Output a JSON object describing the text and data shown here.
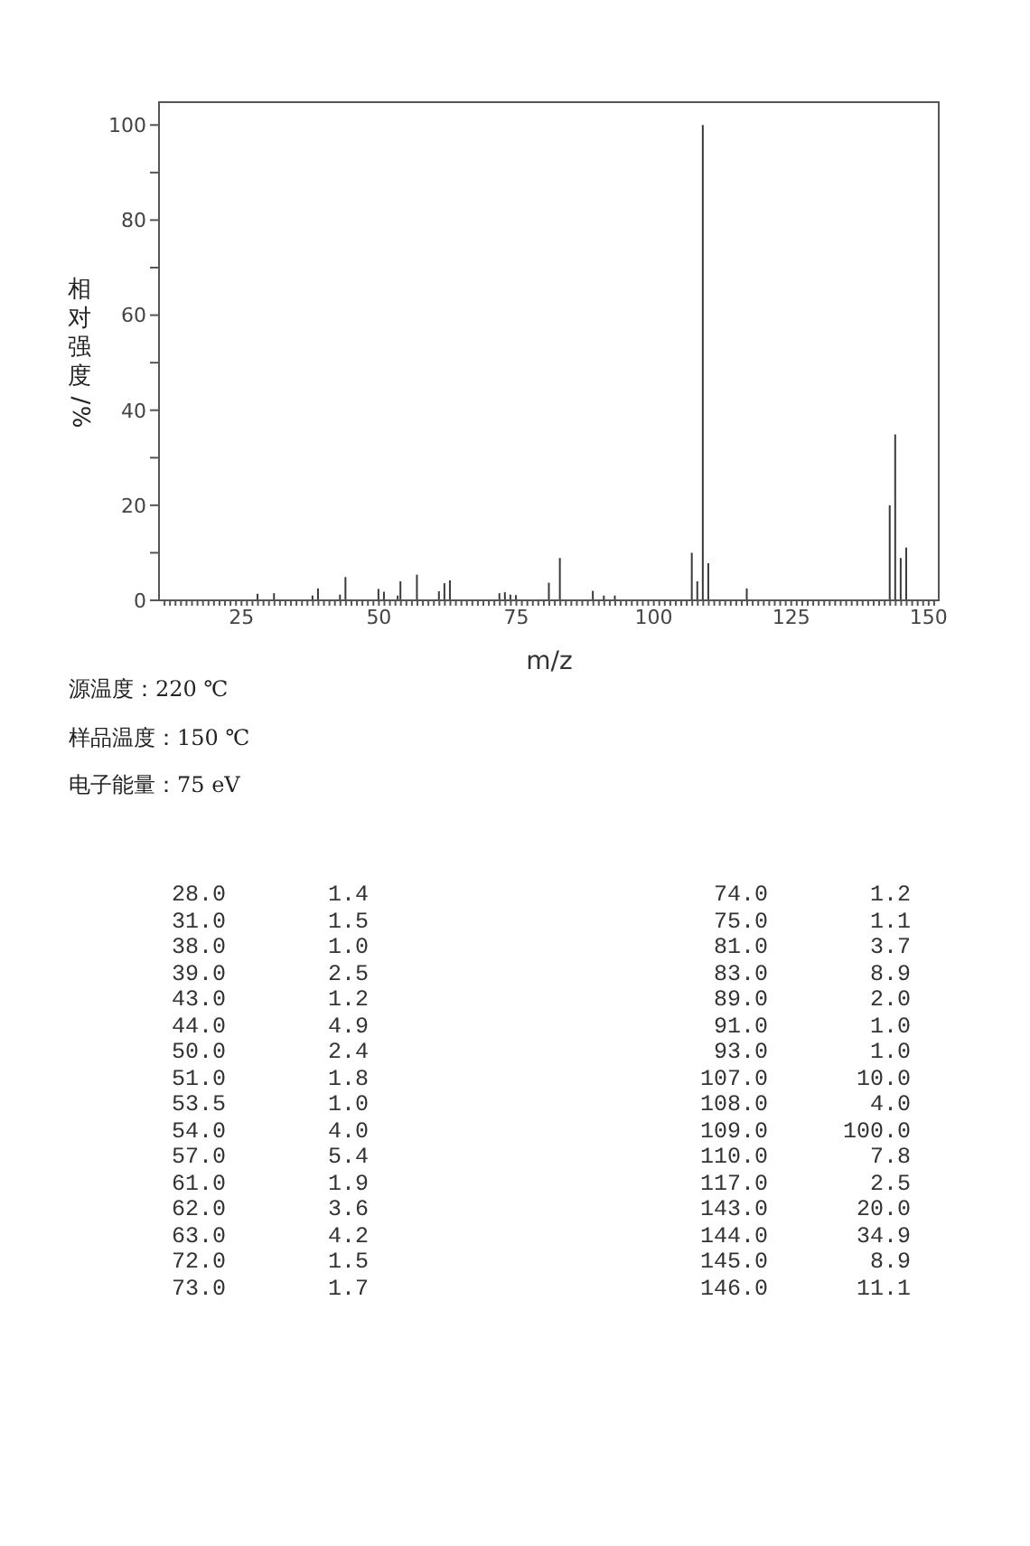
{
  "chart_data": [
    {
      "type": "bar",
      "xlabel": "m/z",
      "ylabel": "相对强度/%",
      "x": [
        28,
        31,
        38,
        39,
        43,
        44,
        50,
        51,
        53.5,
        54,
        57,
        61,
        62,
        63,
        72,
        73,
        74,
        75,
        81,
        83,
        89,
        91,
        93,
        107,
        108,
        109,
        110,
        117,
        143,
        144,
        145,
        146
      ],
      "values": [
        1.4,
        1.5,
        1.0,
        2.5,
        1.2,
        4.9,
        2.4,
        1.8,
        1.0,
        4.0,
        5.4,
        1.9,
        3.6,
        4.2,
        1.5,
        1.7,
        1.2,
        1.1,
        3.7,
        8.9,
        2.0,
        1.0,
        1.0,
        10.0,
        4.0,
        100.0,
        7.8,
        2.5,
        20.0,
        34.9,
        8.9,
        11.1
      ],
      "color": "#3a3a3a",
      "xlim": [
        10,
        152
      ],
      "xticks": [
        {
          "value": 11,
          "label": null
        },
        {
          "value": 12,
          "label": null
        },
        {
          "value": 13,
          "label": null
        },
        {
          "value": 14,
          "label": null
        },
        {
          "value": 15,
          "label": null
        },
        {
          "value": 16,
          "label": null
        },
        {
          "value": 17,
          "label": null
        },
        {
          "value": 18,
          "label": null
        },
        {
          "value": 19,
          "label": null
        },
        {
          "value": 20,
          "label": null
        },
        {
          "value": 21,
          "label": null
        },
        {
          "value": 22,
          "label": null
        },
        {
          "value": 23,
          "label": null
        },
        {
          "value": 24,
          "label": null
        },
        25,
        {
          "value": 26,
          "label": null
        },
        {
          "value": 27,
          "label": null
        },
        {
          "value": 28,
          "label": null
        },
        {
          "value": 29,
          "label": null
        },
        {
          "value": 30,
          "label": null
        },
        {
          "value": 31,
          "label": null
        },
        {
          "value": 32,
          "label": null
        },
        {
          "value": 33,
          "label": null
        },
        {
          "value": 34,
          "label": null
        },
        {
          "value": 35,
          "label": null
        },
        {
          "value": 36,
          "label": null
        },
        {
          "value": 37,
          "label": null
        },
        {
          "value": 38,
          "label": null
        },
        {
          "value": 39,
          "label": null
        },
        {
          "value": 40,
          "label": null
        },
        {
          "value": 41,
          "label": null
        },
        {
          "value": 42,
          "label": null
        },
        {
          "value": 43,
          "label": null
        },
        {
          "value": 44,
          "label": null
        },
        {
          "value": 45,
          "label": null
        },
        {
          "value": 46,
          "label": null
        },
        {
          "value": 47,
          "label": null
        },
        {
          "value": 48,
          "label": null
        },
        {
          "value": 49,
          "label": null
        },
        50,
        {
          "value": 51,
          "label": null
        },
        {
          "value": 52,
          "label": null
        },
        {
          "value": 53,
          "label": null
        },
        {
          "value": 54,
          "label": null
        },
        {
          "value": 55,
          "label": null
        },
        {
          "value": 56,
          "label": null
        },
        {
          "value": 57,
          "label": null
        },
        {
          "value": 58,
          "label": null
        },
        {
          "value": 59,
          "label": null
        },
        {
          "value": 60,
          "label": null
        },
        {
          "value": 61,
          "label": null
        },
        {
          "value": 62,
          "label": null
        },
        {
          "value": 63,
          "label": null
        },
        {
          "value": 64,
          "label": null
        },
        {
          "value": 65,
          "label": null
        },
        {
          "value": 66,
          "label": null
        },
        {
          "value": 67,
          "label": null
        },
        {
          "value": 68,
          "label": null
        },
        {
          "value": 69,
          "label": null
        },
        {
          "value": 70,
          "label": null
        },
        {
          "value": 71,
          "label": null
        },
        {
          "value": 72,
          "label": null
        },
        {
          "value": 73,
          "label": null
        },
        {
          "value": 74,
          "label": null
        },
        75,
        {
          "value": 76,
          "label": null
        },
        {
          "value": 77,
          "label": null
        },
        {
          "value": 78,
          "label": null
        },
        {
          "value": 79,
          "label": null
        },
        {
          "value": 80,
          "label": null
        },
        {
          "value": 81,
          "label": null
        },
        {
          "value": 82,
          "label": null
        },
        {
          "value": 83,
          "label": null
        },
        {
          "value": 84,
          "label": null
        },
        {
          "value": 85,
          "label": null
        },
        {
          "value": 86,
          "label": null
        },
        {
          "value": 87,
          "label": null
        },
        {
          "value": 88,
          "label": null
        },
        {
          "value": 89,
          "label": null
        },
        {
          "value": 90,
          "label": null
        },
        {
          "value": 91,
          "label": null
        },
        {
          "value": 92,
          "label": null
        },
        {
          "value": 93,
          "label": null
        },
        {
          "value": 94,
          "label": null
        },
        {
          "value": 95,
          "label": null
        },
        {
          "value": 96,
          "label": null
        },
        {
          "value": 97,
          "label": null
        },
        {
          "value": 98,
          "label": null
        },
        {
          "value": 99,
          "label": null
        },
        100,
        {
          "value": 101,
          "label": null
        },
        {
          "value": 102,
          "label": null
        },
        {
          "value": 103,
          "label": null
        },
        {
          "value": 104,
          "label": null
        },
        {
          "value": 105,
          "label": null
        },
        {
          "value": 106,
          "label": null
        },
        {
          "value": 107,
          "label": null
        },
        {
          "value": 108,
          "label": null
        },
        {
          "value": 109,
          "label": null
        },
        {
          "value": 110,
          "label": null
        },
        {
          "value": 111,
          "label": null
        },
        {
          "value": 112,
          "label": null
        },
        {
          "value": 113,
          "label": null
        },
        {
          "value": 114,
          "label": null
        },
        {
          "value": 115,
          "label": null
        },
        {
          "value": 116,
          "label": null
        },
        {
          "value": 117,
          "label": null
        },
        {
          "value": 118,
          "label": null
        },
        {
          "value": 119,
          "label": null
        },
        {
          "value": 120,
          "label": null
        },
        {
          "value": 121,
          "label": null
        },
        {
          "value": 122,
          "label": null
        },
        {
          "value": 123,
          "label": null
        },
        {
          "value": 124,
          "label": null
        },
        125,
        {
          "value": 126,
          "label": null
        },
        {
          "value": 127,
          "label": null
        },
        {
          "value": 128,
          "label": null
        },
        {
          "value": 129,
          "label": null
        },
        {
          "value": 130,
          "label": null
        },
        {
          "value": 131,
          "label": null
        },
        {
          "value": 132,
          "label": null
        },
        {
          "value": 133,
          "label": null
        },
        {
          "value": 134,
          "label": null
        },
        {
          "value": 135,
          "label": null
        },
        {
          "value": 136,
          "label": null
        },
        {
          "value": 137,
          "label": null
        },
        {
          "value": 138,
          "label": null
        },
        {
          "value": 139,
          "label": null
        },
        {
          "value": 140,
          "label": null
        },
        {
          "value": 141,
          "label": null
        },
        {
          "value": 142,
          "label": null
        },
        {
          "value": 143,
          "label": null
        },
        {
          "value": 144,
          "label": null
        },
        {
          "value": 145,
          "label": null
        },
        {
          "value": 146,
          "label": null
        },
        {
          "value": 147,
          "label": null
        },
        {
          "value": 148,
          "label": null
        },
        {
          "value": 149,
          "label": null
        },
        150,
        {
          "value": 151,
          "label": null
        }
      ],
      "ylim": [
        0,
        105
      ],
      "yticks": [
        0,
        {
          "value": 10,
          "label": null
        },
        20,
        {
          "value": 30,
          "label": null
        },
        40,
        {
          "value": 50,
          "label": null
        },
        60,
        {
          "value": 70,
          "label": null
        },
        80,
        {
          "value": 90,
          "label": null
        },
        100
      ],
      "annotations": [
        "源温度：220 ℃",
        "样品温度：150 ℃",
        "电子能量：75 eV"
      ]
    },
    {
      "type": "other",
      "categories": [
        "28.0",
        "31.0",
        "38.0",
        "39.0",
        "43.0",
        "44.0",
        "50.0",
        "51.0",
        "53.5",
        "54.0",
        "57.0",
        "61.0",
        "62.0",
        "63.0",
        "72.0",
        "73.0",
        "74.0",
        "75.0",
        "81.0",
        "83.0",
        "89.0",
        "91.0",
        "93.0",
        "107.0",
        "108.0",
        "109.0",
        "110.0",
        "117.0",
        "143.0",
        "144.0",
        "145.0",
        "146.0"
      ],
      "value_labels": [
        "1.4",
        "1.5",
        "1.0",
        "2.5",
        "1.2",
        "4.9",
        "2.4",
        "1.8",
        "1.0",
        "4.0",
        "5.4",
        "1.9",
        "3.6",
        "4.2",
        "1.5",
        "1.7",
        "1.2",
        "1.1",
        "3.7",
        "8.9",
        "2.0",
        "1.0",
        "1.0",
        "10.0",
        "4.0",
        "100.0",
        "7.8",
        "2.5",
        "20.0",
        "34.9",
        "8.9",
        "11.1"
      ]
    }
  ]
}
